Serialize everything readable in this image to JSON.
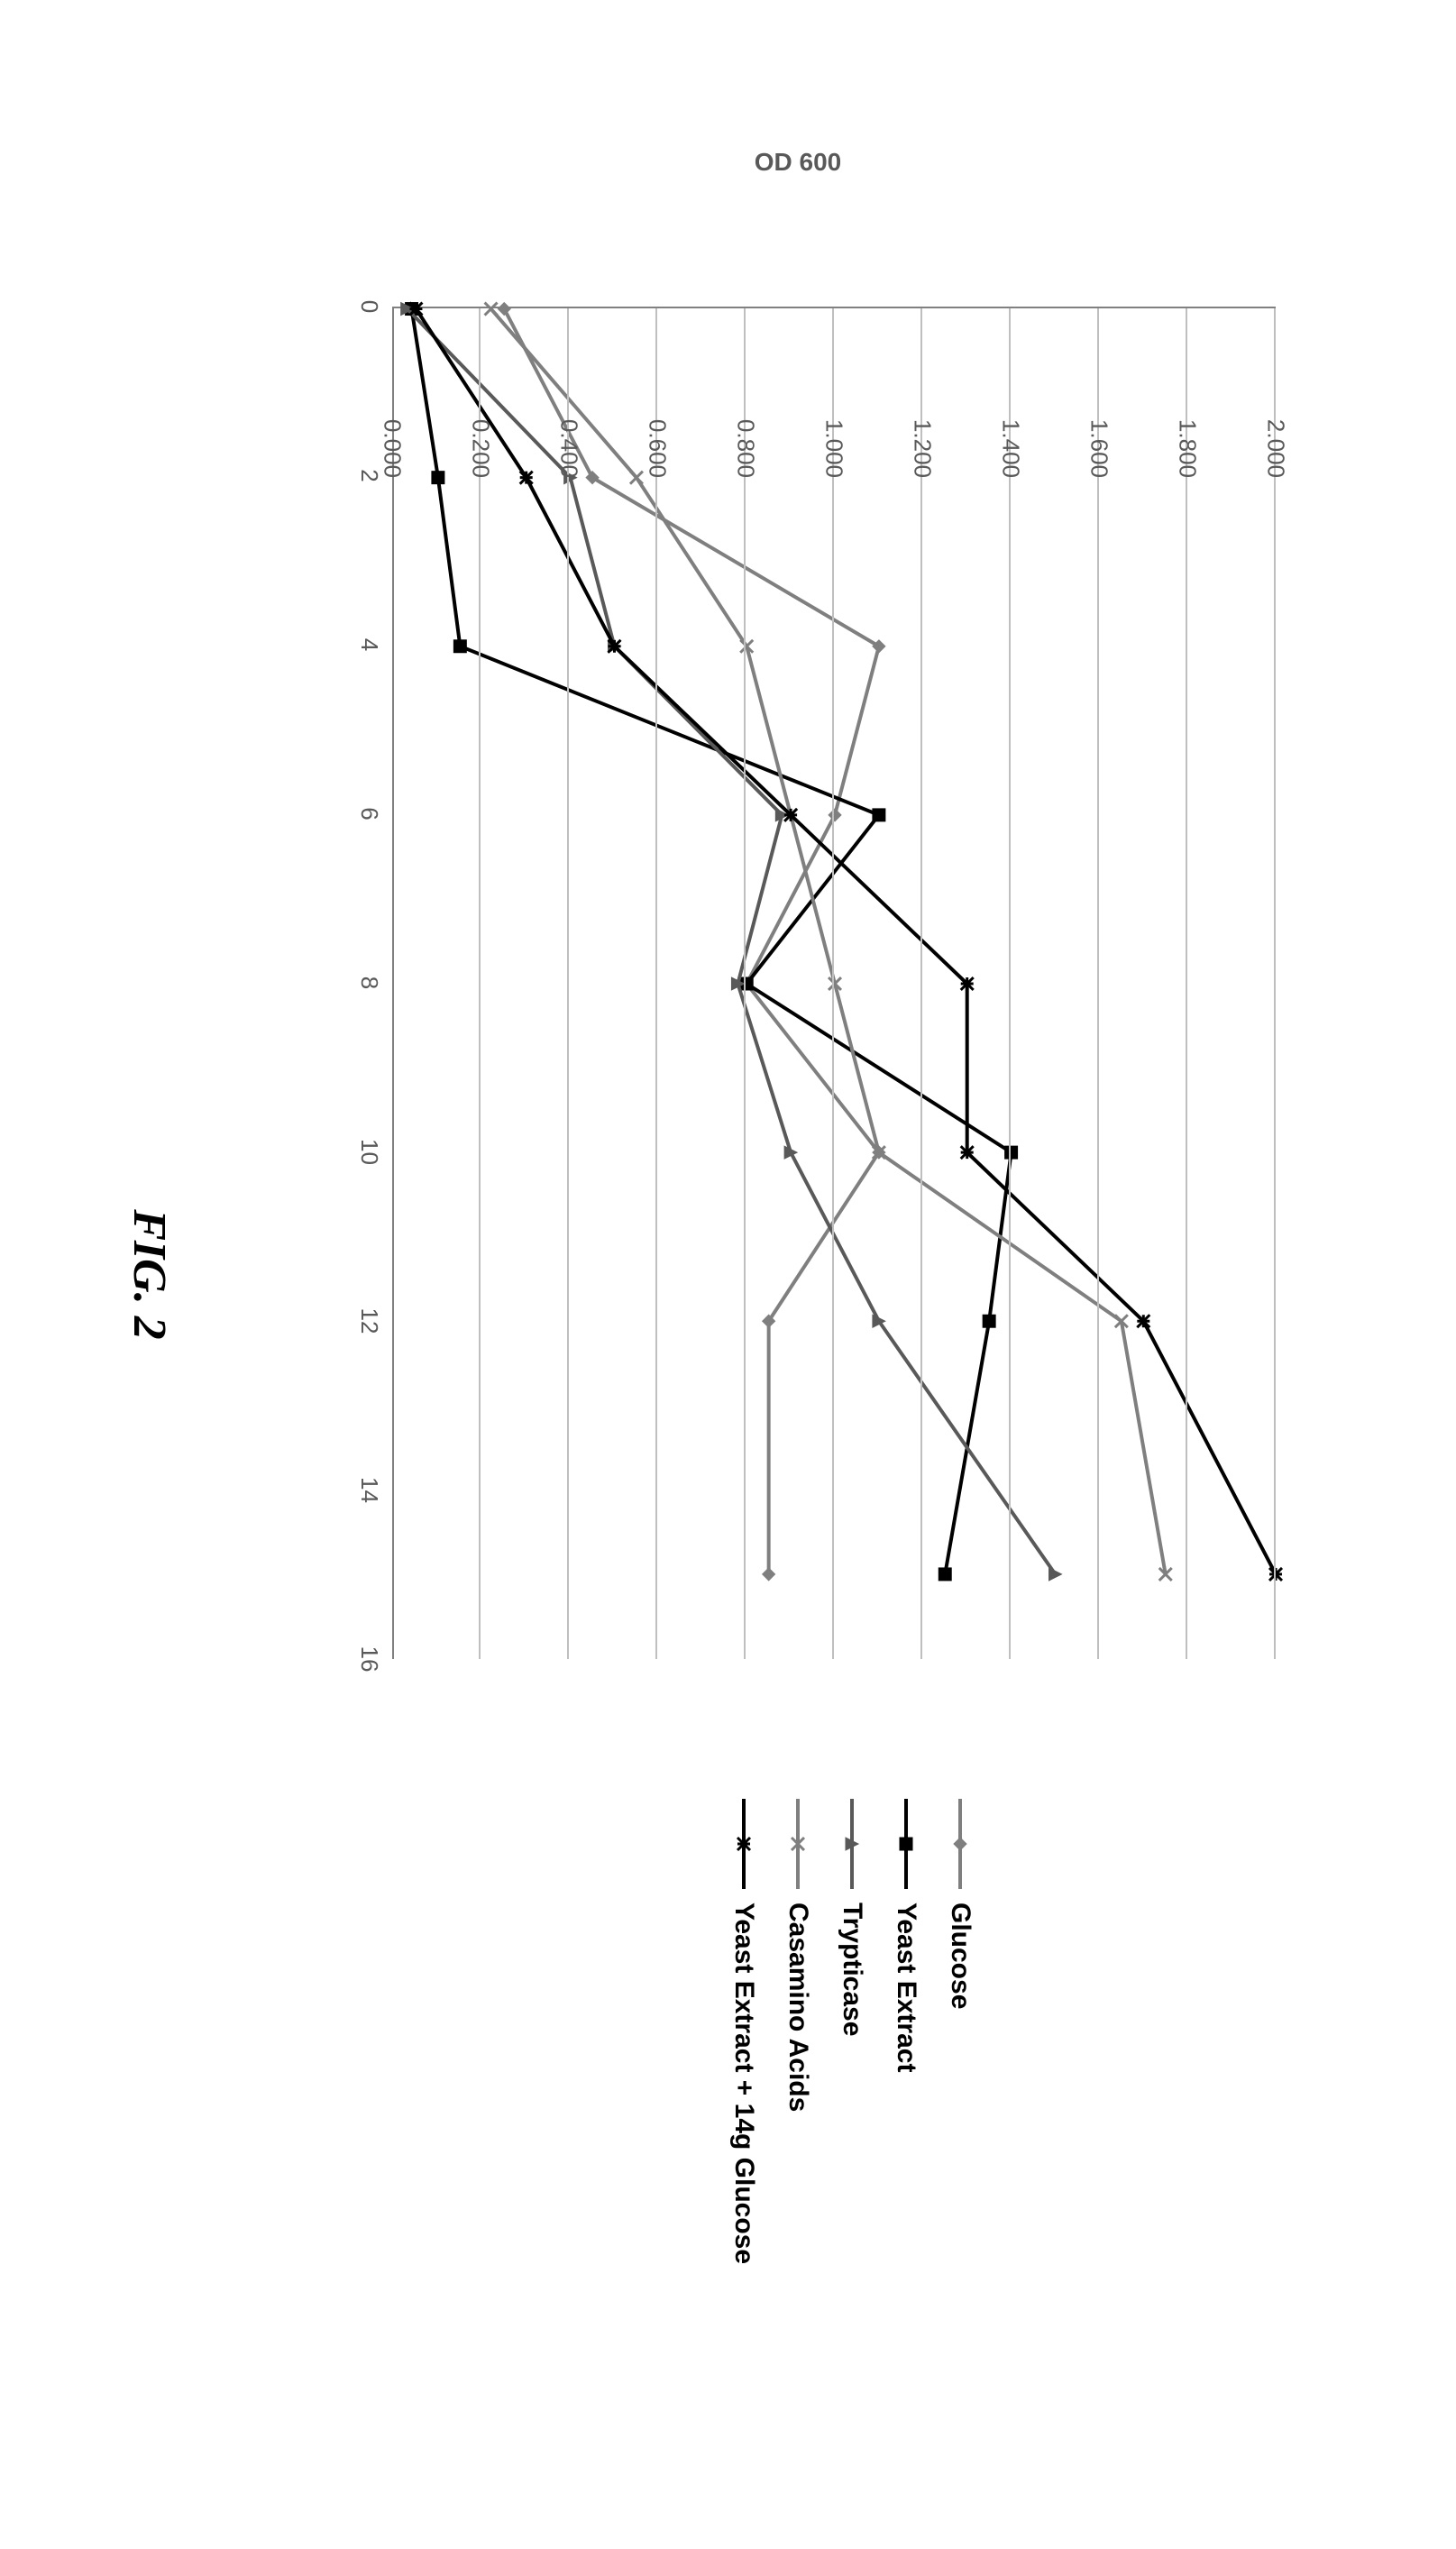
{
  "figure_label": "FIG. 2",
  "chart": {
    "type": "line",
    "ylabel": "OD 600",
    "xlim": [
      0,
      16
    ],
    "ylim": [
      0,
      2.0
    ],
    "xtick_step": 2,
    "ytick_step": 0.2,
    "ytick_labels": [
      "0.000",
      "0.200",
      "0.400",
      "0.600",
      "0.800",
      "1.000",
      "1.200",
      "1.400",
      "1.600",
      "1.800",
      "2.000"
    ],
    "xtick_labels": [
      "0",
      "2",
      "4",
      "6",
      "8",
      "10",
      "12",
      "14",
      "16"
    ],
    "background_color": "#ffffff",
    "grid_color": "#bfbfbf",
    "axis_color": "#808080",
    "tick_label_color": "#595959",
    "tick_fontsize": 26,
    "ylabel_fontsize": 28,
    "line_width": 4,
    "marker_size": 14,
    "series": [
      {
        "name": "Glucose",
        "label": "Glucose",
        "color": "#7f7f7f",
        "marker": "diamond",
        "x": [
          0,
          2,
          4,
          6,
          8,
          10,
          12,
          15
        ],
        "y": [
          0.25,
          0.45,
          1.1,
          1.0,
          0.8,
          1.1,
          0.85,
          0.85
        ]
      },
      {
        "name": "Yeast Extract",
        "label": "Yeast Extract",
        "color": "#000000",
        "marker": "square",
        "x": [
          0,
          2,
          4,
          6,
          8,
          10,
          12,
          15
        ],
        "y": [
          0.04,
          0.1,
          0.15,
          1.1,
          0.8,
          1.4,
          1.35,
          1.25
        ]
      },
      {
        "name": "Trypticase",
        "label": "Trypticase",
        "color": "#595959",
        "marker": "triangle",
        "x": [
          0,
          2,
          4,
          6,
          8,
          10,
          12,
          15
        ],
        "y": [
          0.03,
          0.4,
          0.5,
          0.88,
          0.78,
          0.9,
          1.1,
          1.5
        ]
      },
      {
        "name": "Casamino Acids",
        "label": "Casamino Acids",
        "color": "#7f7f7f",
        "marker": "x",
        "x": [
          0,
          2,
          4,
          6,
          8,
          10,
          12,
          15
        ],
        "y": [
          0.22,
          0.55,
          0.8,
          0.9,
          1.0,
          1.1,
          1.65,
          1.75
        ]
      },
      {
        "name": "Yeast Extract + 14g Glucose",
        "label": "Yeast Extract + 14g Glucose",
        "color": "#000000",
        "marker": "asterisk",
        "x": [
          0,
          2,
          4,
          6,
          8,
          10,
          12,
          15
        ],
        "y": [
          0.05,
          0.3,
          0.5,
          0.9,
          1.3,
          1.3,
          1.7,
          2.0
        ]
      }
    ],
    "legend": {
      "position": "right",
      "fontsize": 30,
      "font_weight": "bold",
      "text_color": "#000000"
    }
  }
}
